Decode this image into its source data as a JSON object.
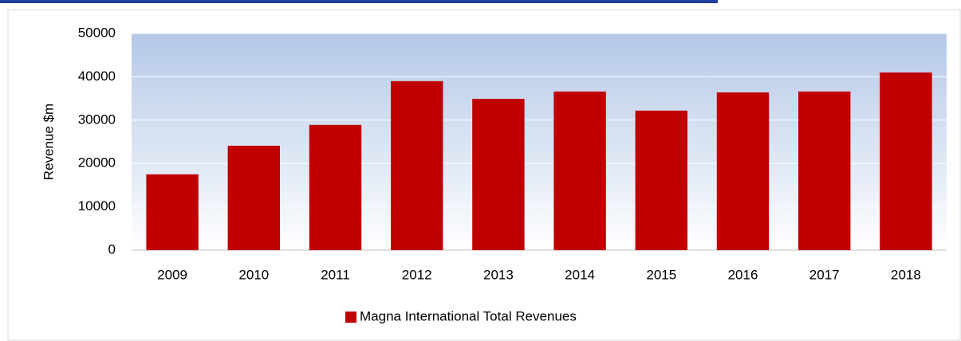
{
  "chart_data": {
    "type": "bar",
    "y_label": "Revenue $m",
    "categories": [
      "2009",
      "2010",
      "2011",
      "2012",
      "2013",
      "2014",
      "2015",
      "2016",
      "2017",
      "2018"
    ],
    "series": [
      {
        "name": "Magna International Total Revenues",
        "color": "#c00000",
        "values": [
          17500,
          24100,
          28900,
          39000,
          34900,
          36600,
          32200,
          36400,
          36600,
          41000
        ]
      }
    ],
    "ylim": [
      0,
      50000
    ],
    "yticks": [
      0,
      10000,
      20000,
      30000,
      40000,
      50000
    ],
    "grid": true,
    "legend": "bottom"
  }
}
